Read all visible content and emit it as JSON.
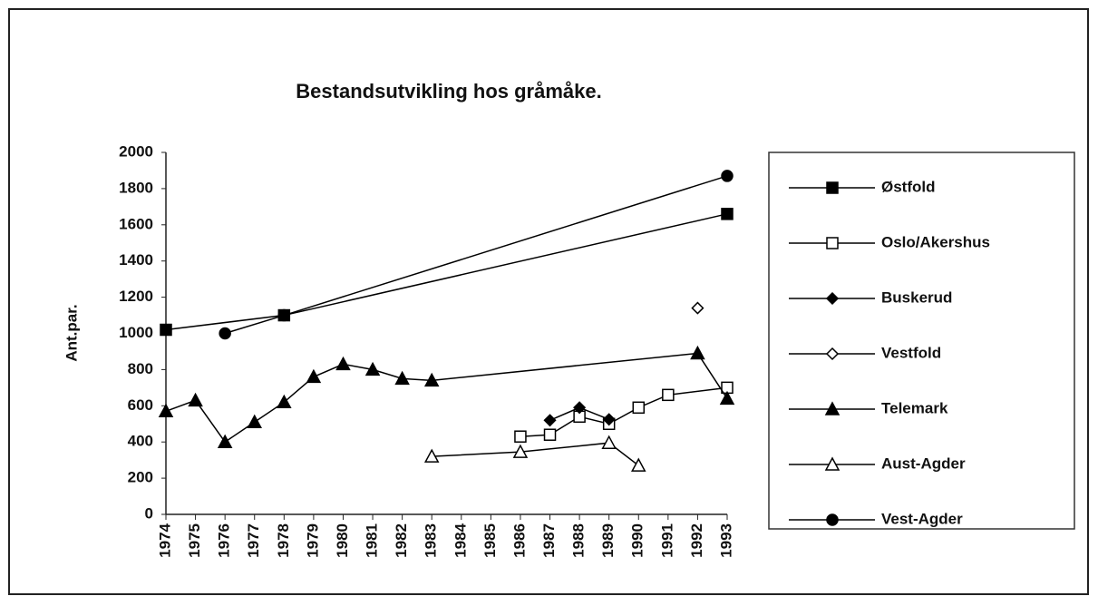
{
  "chart_data": {
    "type": "line",
    "title": "Bestandsutvikling hos gråmåke.",
    "ylabel": "Ant.par.",
    "xlim": [
      1974,
      1993
    ],
    "xticks": [
      1974,
      1975,
      1976,
      1977,
      1978,
      1979,
      1980,
      1981,
      1982,
      1983,
      1984,
      1985,
      1986,
      1987,
      1988,
      1989,
      1990,
      1991,
      1992,
      1993
    ],
    "ylim": [
      0,
      2000
    ],
    "yticks": [
      0,
      200,
      400,
      600,
      800,
      1000,
      1200,
      1400,
      1600,
      1800,
      2000
    ],
    "grid": false,
    "legend": "right",
    "series": [
      {
        "name": "Østfold",
        "color": "#000000",
        "marker": "square",
        "filled": true,
        "x": [
          1974,
          1978,
          1993
        ],
        "values": [
          1020,
          1100,
          1660
        ]
      },
      {
        "name": "Oslo/Akershus",
        "color": "#000000",
        "marker": "square",
        "filled": false,
        "x": [
          1986,
          1987,
          1988,
          1989,
          1990,
          1991,
          1993
        ],
        "values": [
          430,
          440,
          540,
          500,
          590,
          660,
          700
        ]
      },
      {
        "name": "Buskerud",
        "color": "#000000",
        "marker": "diamond",
        "filled": true,
        "x": [
          1987,
          1988,
          1989
        ],
        "values": [
          520,
          590,
          525
        ]
      },
      {
        "name": "Vestfold",
        "color": "#000000",
        "marker": "diamond",
        "filled": false,
        "x": [
          1992
        ],
        "values": [
          1140
        ]
      },
      {
        "name": "Telemark",
        "color": "#000000",
        "marker": "triangle",
        "filled": true,
        "x": [
          1974,
          1975,
          1976,
          1977,
          1978,
          1979,
          1980,
          1981,
          1982,
          1983,
          1992,
          1993
        ],
        "values": [
          570,
          630,
          400,
          510,
          620,
          760,
          830,
          800,
          750,
          740,
          890,
          640
        ]
      },
      {
        "name": "Aust-Agder",
        "color": "#000000",
        "marker": "triangle",
        "filled": false,
        "x": [
          1983,
          1986,
          1989,
          1990
        ],
        "values": [
          320,
          345,
          395,
          270
        ]
      },
      {
        "name": "Vest-Agder",
        "color": "#000000",
        "marker": "circle",
        "filled": true,
        "x": [
          1976,
          1978,
          1993
        ],
        "values": [
          1000,
          1100,
          1870
        ]
      }
    ]
  }
}
